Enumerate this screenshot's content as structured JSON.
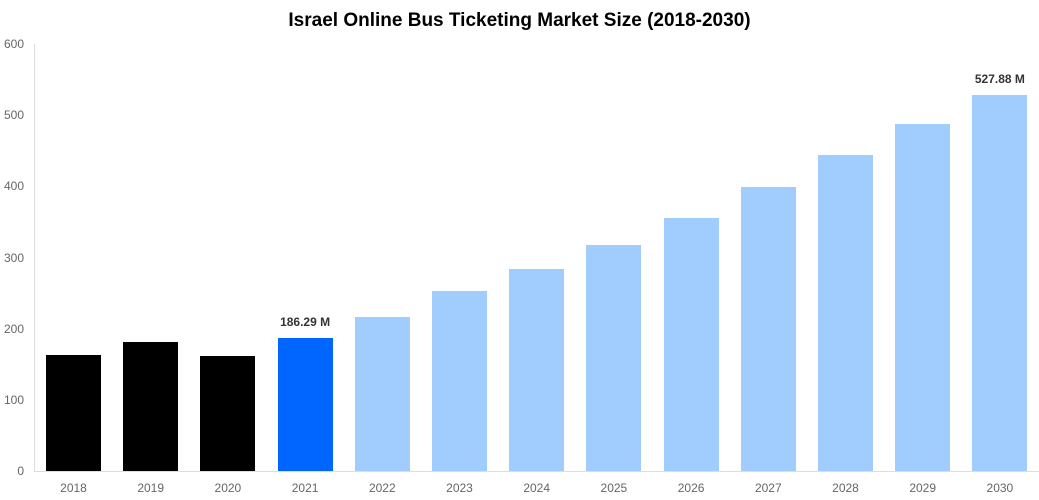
{
  "chart_data": {
    "type": "bar",
    "title": "Israel Online Bus Ticketing Market Size (2018-2030)",
    "xlabel": "",
    "ylabel": "",
    "ylim": [
      0,
      600
    ],
    "yticks": [
      0,
      100,
      200,
      300,
      400,
      500,
      600
    ],
    "grid": false,
    "categories": [
      "2018",
      "2019",
      "2020",
      "2021",
      "2022",
      "2023",
      "2024",
      "2025",
      "2026",
      "2027",
      "2028",
      "2029",
      "2030"
    ],
    "values": [
      163,
      181,
      162,
      186.29,
      216,
      253,
      284,
      318,
      356,
      399,
      444,
      488,
      527.88
    ],
    "colors": [
      "#000000",
      "#000000",
      "#000000",
      "#0066ff",
      "#a0cdfd",
      "#a0cdfd",
      "#a0cdfd",
      "#a0cdfd",
      "#a0cdfd",
      "#a0cdfd",
      "#a0cdfd",
      "#a0cdfd",
      "#a0cdfd"
    ],
    "annotations": [
      {
        "category": "2021",
        "text": "186.29 M"
      },
      {
        "category": "2030",
        "text": "527.88 M"
      }
    ]
  }
}
